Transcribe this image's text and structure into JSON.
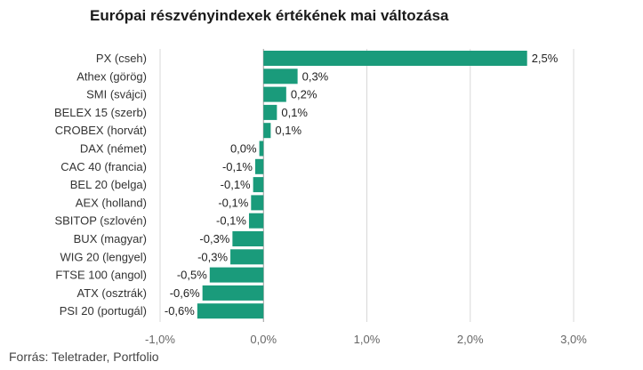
{
  "title": "Európai részvényindexek értékének mai változása",
  "source": "Forrás: Teletrader, Portfolio",
  "colors": {
    "bar": "#1a9b7b",
    "grid": "#d8d8d8",
    "zero_line": "#999999"
  },
  "chart_data": {
    "type": "bar",
    "orientation": "horizontal",
    "title": "Európai részvényindexek értékének mai változása",
    "categories": [
      "PX (cseh)",
      "Athex (görög)",
      "SMI (svájci)",
      "BELEX 15 (szerb)",
      "CROBEX (horvát)",
      "DAX (német)",
      "CAC 40 (francia)",
      "BEL 20 (belga)",
      "AEX (holland)",
      "SBITOP (szlovén)",
      "BUX (magyar)",
      "WIG 20 (lengyel)",
      "FTSE 100 (angol)",
      "ATX (osztrák)",
      "PSI 20 (portugál)"
    ],
    "values": [
      2.55,
      0.33,
      0.22,
      0.13,
      0.07,
      -0.04,
      -0.08,
      -0.1,
      -0.12,
      -0.14,
      -0.3,
      -0.32,
      -0.52,
      -0.59,
      -0.64
    ],
    "value_labels": [
      "2,5%",
      "0,3%",
      "0,2%",
      "0,1%",
      "0,1%",
      "0,0%",
      "-0,1%",
      "-0,1%",
      "-0,1%",
      "-0,1%",
      "-0,3%",
      "-0,3%",
      "-0,5%",
      "-0,6%",
      "-0,6%"
    ],
    "xlim": [
      -1.0,
      3.0
    ],
    "ticks": [
      -1.0,
      0.0,
      1.0,
      2.0,
      3.0
    ],
    "tick_labels": [
      "-1,0%",
      "0,0%",
      "1,0%",
      "2,0%",
      "3,0%"
    ],
    "grid": true,
    "legend": "none"
  }
}
